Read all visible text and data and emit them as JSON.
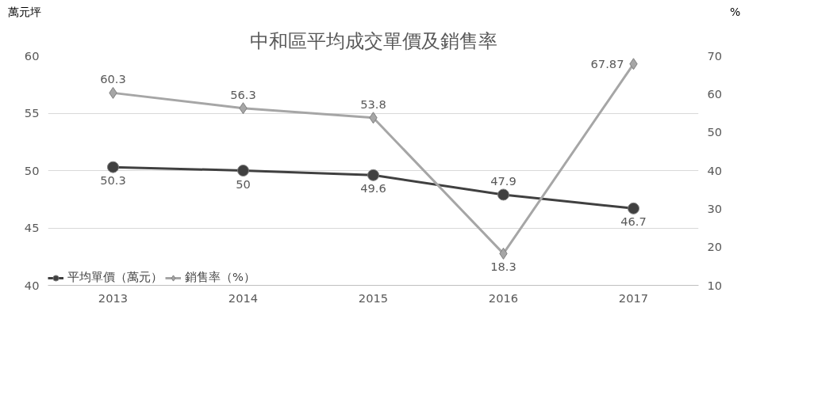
{
  "chart_data": {
    "type": "line",
    "title": "中和區平均成交單價及銷售率",
    "ylabel": "萬元坪",
    "y2label": "%",
    "categories": [
      "2013",
      "2014",
      "2015",
      "2016",
      "2017"
    ],
    "series": [
      {
        "name": "平均單價（萬元）",
        "color": "#404040",
        "marker": "circle",
        "values": [
          50.3,
          50,
          49.6,
          47.9,
          46.7
        ]
      },
      {
        "name": "銷售率（%）",
        "color": "#a6a6a6",
        "marker": "diamond",
        "axis": "y2",
        "values": [
          60.3,
          56.3,
          53.8,
          18.3,
          67.87
        ]
      }
    ],
    "ylim": [
      40,
      60
    ],
    "yticks": [
      40,
      45,
      50,
      55,
      60
    ],
    "y2lim": [
      10,
      70
    ],
    "y2ticks": [
      10,
      20,
      30,
      40,
      50,
      60,
      70
    ],
    "grid": "y",
    "legend": "bottom",
    "data_labels": true
  }
}
